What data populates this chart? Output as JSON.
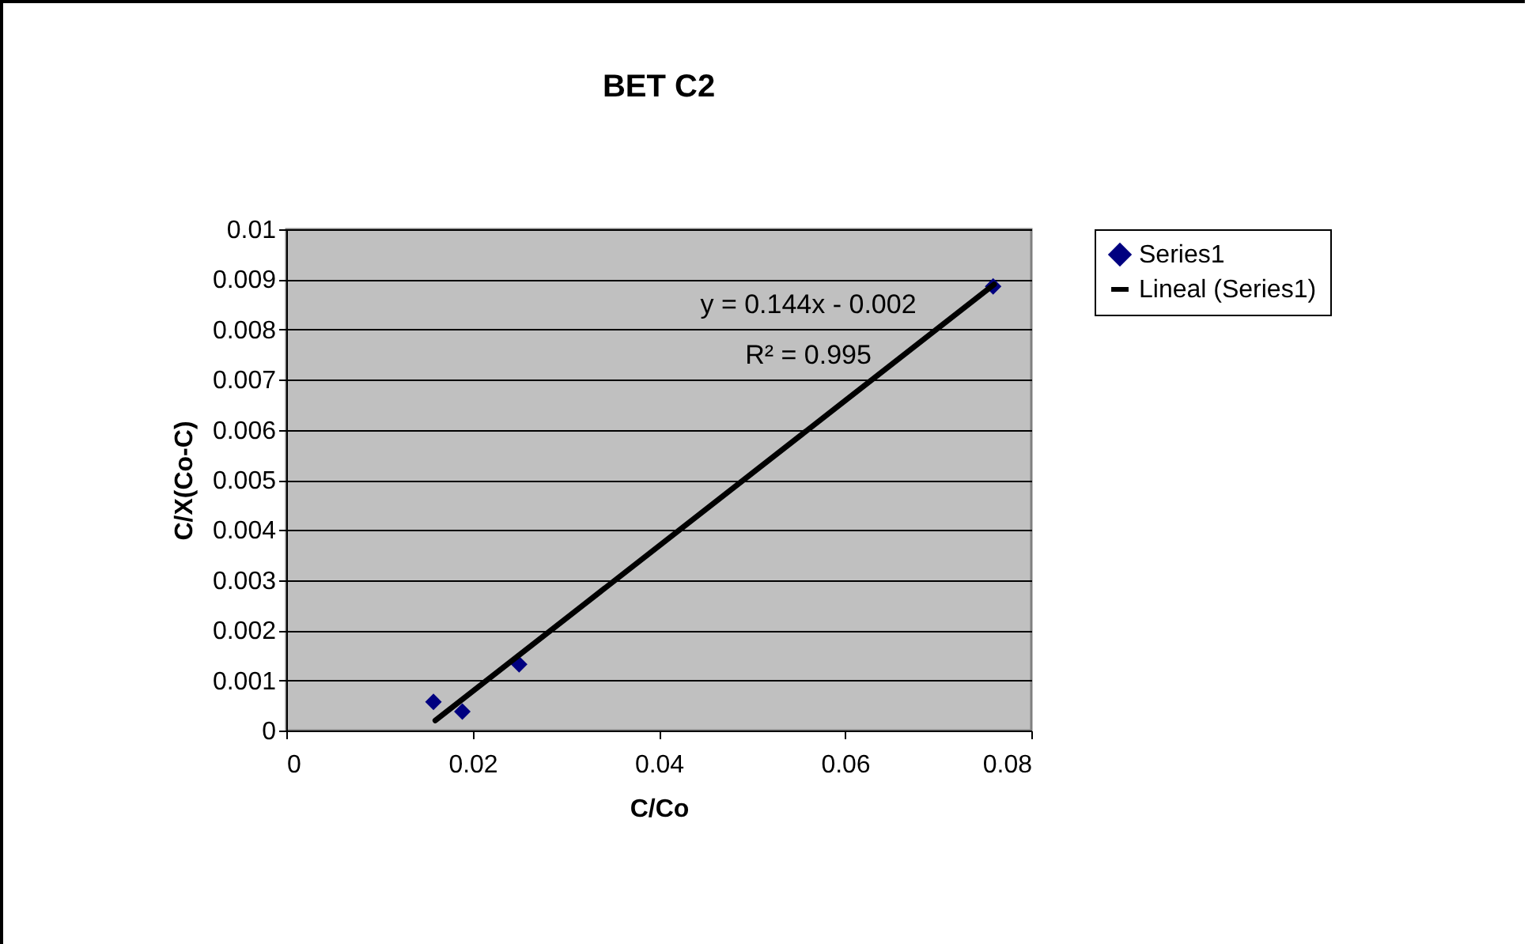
{
  "chart_data": {
    "type": "scatter",
    "title": "BET C2",
    "xlabel": "C/Co",
    "ylabel": "C/X(Co-C)",
    "xlim": [
      0,
      0.08
    ],
    "xticks": [
      0,
      0.02,
      0.04,
      0.06,
      0.08
    ],
    "ylim": [
      0,
      0.01
    ],
    "yticks": [
      0,
      0.001,
      0.002,
      0.003,
      0.004,
      0.005,
      0.006,
      0.007,
      0.008,
      0.009,
      0.01
    ],
    "grid": "y",
    "legend": "right",
    "annotations": [
      "y = 0.144x - 0.002",
      "R² = 0.995"
    ],
    "series": [
      {
        "name": "Series1",
        "type": "scatter",
        "marker": "diamond",
        "color": "#000080",
        "x": [
          0.0158,
          0.0189,
          0.025,
          0.0759
        ],
        "values": [
          0.00057,
          0.00038,
          0.00132,
          0.00886
        ]
      },
      {
        "name": "Lineal (Series1)",
        "type": "line",
        "marker": "none",
        "line_style": "solid",
        "color": "#000000",
        "x": [
          0.016,
          0.076
        ],
        "values": [
          0.0002,
          0.0089
        ]
      }
    ]
  }
}
